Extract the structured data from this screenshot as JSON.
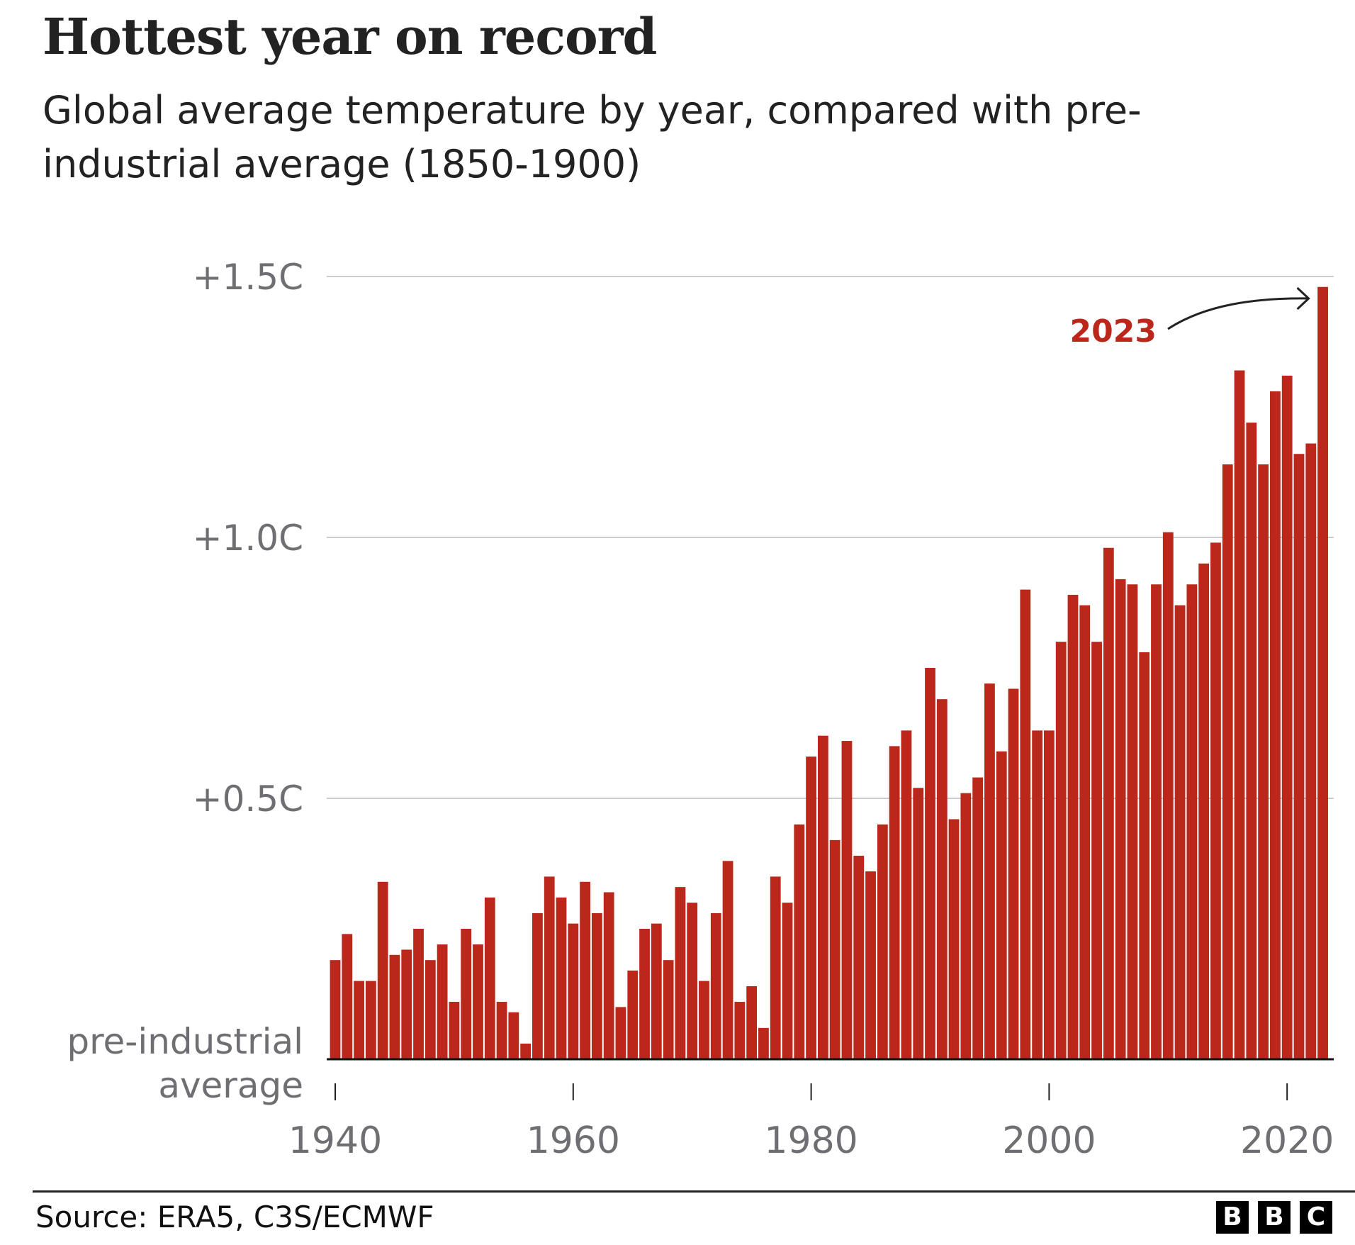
{
  "title": "Hottest year on record",
  "subtitle": "Global average temperature by year, compared with pre-industrial average (1850-1900)",
  "source": "Source: ERA5, C3S/ECMWF",
  "logo": [
    "B",
    "B",
    "C"
  ],
  "colors": {
    "bar": "#bb271a",
    "annotation": "#bb271a",
    "grid": "#cccccc",
    "axis_text": "#6e6e73"
  },
  "chart_data": {
    "type": "bar",
    "title": "Hottest year on record",
    "subtitle": "Global average temperature by year, compared with pre-industrial average (1850-1900)",
    "xlabel": "",
    "ylabel": "",
    "ylim": [
      0,
      1.5
    ],
    "y_ticks": [
      {
        "value": 0,
        "label": "pre-industrial average"
      },
      {
        "value": 0.5,
        "label": "+0.5C"
      },
      {
        "value": 1.0,
        "label": "+1.0C"
      },
      {
        "value": 1.5,
        "label": "+1.5C"
      }
    ],
    "x_ticks": [
      1940,
      1960,
      1980,
      2000,
      2020
    ],
    "x_tick_labels": [
      "1940",
      "1960",
      "1980",
      "2000",
      "2020"
    ],
    "grid": true,
    "annotation": {
      "label": "2023",
      "target_year": 2023
    },
    "categories": [
      1940,
      1941,
      1942,
      1943,
      1944,
      1945,
      1946,
      1947,
      1948,
      1949,
      1950,
      1951,
      1952,
      1953,
      1954,
      1955,
      1956,
      1957,
      1958,
      1959,
      1960,
      1961,
      1962,
      1963,
      1964,
      1965,
      1966,
      1967,
      1968,
      1969,
      1970,
      1971,
      1972,
      1973,
      1974,
      1975,
      1976,
      1977,
      1978,
      1979,
      1980,
      1981,
      1982,
      1983,
      1984,
      1985,
      1986,
      1987,
      1988,
      1989,
      1990,
      1991,
      1992,
      1993,
      1994,
      1995,
      1996,
      1997,
      1998,
      1999,
      2000,
      2001,
      2002,
      2003,
      2004,
      2005,
      2006,
      2007,
      2008,
      2009,
      2010,
      2011,
      2012,
      2013,
      2014,
      2015,
      2016,
      2017,
      2018,
      2019,
      2020,
      2021,
      2022,
      2023
    ],
    "values": [
      0.19,
      0.24,
      0.15,
      0.15,
      0.34,
      0.2,
      0.21,
      0.25,
      0.19,
      0.22,
      0.11,
      0.25,
      0.22,
      0.31,
      0.11,
      0.09,
      0.03,
      0.28,
      0.35,
      0.31,
      0.26,
      0.34,
      0.28,
      0.32,
      0.1,
      0.17,
      0.25,
      0.26,
      0.19,
      0.33,
      0.3,
      0.15,
      0.28,
      0.38,
      0.11,
      0.14,
      0.06,
      0.35,
      0.3,
      0.45,
      0.58,
      0.62,
      0.42,
      0.61,
      0.39,
      0.36,
      0.45,
      0.6,
      0.63,
      0.52,
      0.75,
      0.69,
      0.46,
      0.51,
      0.54,
      0.72,
      0.59,
      0.71,
      0.9,
      0.63,
      0.63,
      0.8,
      0.89,
      0.87,
      0.8,
      0.98,
      0.92,
      0.91,
      0.78,
      0.91,
      1.01,
      0.87,
      0.91,
      0.95,
      0.99,
      1.14,
      1.32,
      1.22,
      1.14,
      1.28,
      1.31,
      1.16,
      1.18,
      1.48
    ]
  }
}
